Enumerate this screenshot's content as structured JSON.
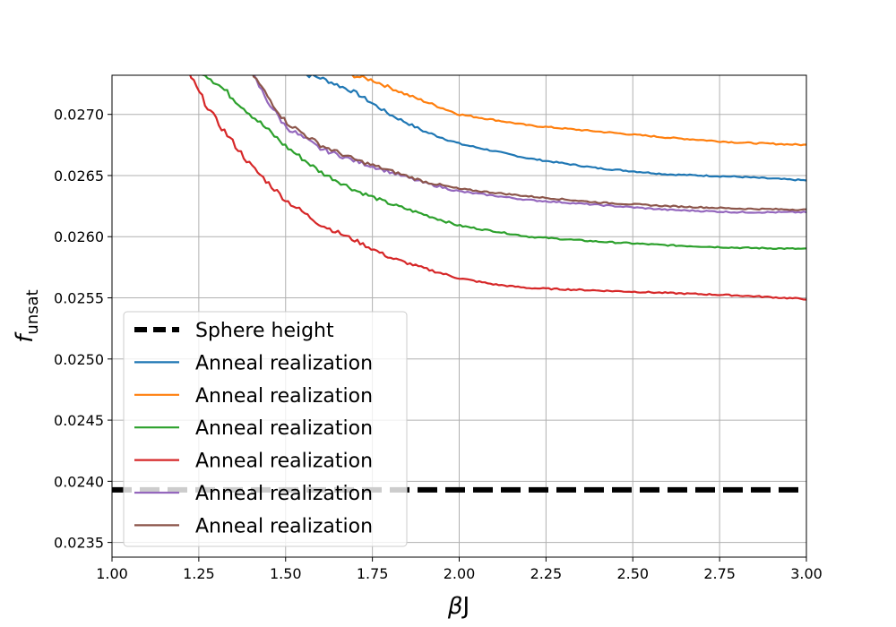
{
  "chart_data": {
    "type": "line",
    "title": "",
    "xlabel_main": "β",
    "xlabel_tail": "J",
    "ylabel_main": "f",
    "ylabel_sub": "unsat",
    "xlim": [
      1.0,
      3.0
    ],
    "ylim": [
      0.02338,
      0.02732
    ],
    "x_ticks": [
      "1.00",
      "1.25",
      "1.50",
      "1.75",
      "2.00",
      "2.25",
      "2.50",
      "2.75",
      "3.00"
    ],
    "y_ticks": [
      "0.0235",
      "0.0240",
      "0.0245",
      "0.0250",
      "0.0255",
      "0.0260",
      "0.0265",
      "0.0270"
    ],
    "grid": true,
    "legend_position": "lower-left",
    "reference_line": {
      "name": "Sphere height",
      "y": 0.02393,
      "color": "#000000",
      "style": "dashed"
    },
    "series": [
      {
        "name": "Anneal realization",
        "color": "#1f77b4",
        "points": [
          [
            1.52,
            0.02735
          ],
          [
            1.6,
            0.0273
          ],
          [
            1.7,
            0.02718
          ],
          [
            1.8,
            0.027
          ],
          [
            1.9,
            0.02686
          ],
          [
            2.0,
            0.02676
          ],
          [
            2.2,
            0.02664
          ],
          [
            2.4,
            0.02656
          ],
          [
            2.6,
            0.02651
          ],
          [
            2.8,
            0.02649
          ],
          [
            3.0,
            0.02646
          ]
        ]
      },
      {
        "name": "Anneal realization",
        "color": "#ff7f0e",
        "points": [
          [
            1.65,
            0.02735
          ],
          [
            1.75,
            0.02728
          ],
          [
            1.85,
            0.02716
          ],
          [
            2.0,
            0.027
          ],
          [
            2.2,
            0.02691
          ],
          [
            2.4,
            0.02686
          ],
          [
            2.6,
            0.02681
          ],
          [
            2.8,
            0.02677
          ],
          [
            3.0,
            0.02675
          ]
        ]
      },
      {
        "name": "Anneal realization",
        "color": "#2ca02c",
        "points": [
          [
            1.26,
            0.02735
          ],
          [
            1.3,
            0.02726
          ],
          [
            1.4,
            0.027
          ],
          [
            1.5,
            0.02674
          ],
          [
            1.6,
            0.02653
          ],
          [
            1.7,
            0.02638
          ],
          [
            1.8,
            0.02627
          ],
          [
            1.9,
            0.02618
          ],
          [
            2.0,
            0.02609
          ],
          [
            2.2,
            0.026
          ],
          [
            2.4,
            0.02596
          ],
          [
            2.6,
            0.02593
          ],
          [
            2.8,
            0.02591
          ],
          [
            3.0,
            0.0259
          ]
        ]
      },
      {
        "name": "Anneal realization",
        "color": "#d62728",
        "points": [
          [
            1.22,
            0.02735
          ],
          [
            1.25,
            0.02718
          ],
          [
            1.3,
            0.02695
          ],
          [
            1.4,
            0.02658
          ],
          [
            1.5,
            0.0263
          ],
          [
            1.6,
            0.0261
          ],
          [
            1.7,
            0.02597
          ],
          [
            1.8,
            0.02583
          ],
          [
            1.9,
            0.02574
          ],
          [
            2.0,
            0.02566
          ],
          [
            2.1,
            0.02561
          ],
          [
            2.2,
            0.02558
          ],
          [
            2.4,
            0.02556
          ],
          [
            2.6,
            0.02554
          ],
          [
            2.8,
            0.02552
          ],
          [
            3.0,
            0.02549
          ]
        ]
      },
      {
        "name": "Anneal realization",
        "color": "#9467bd",
        "points": [
          [
            1.4,
            0.02735
          ],
          [
            1.45,
            0.0271
          ],
          [
            1.5,
            0.0269
          ],
          [
            1.6,
            0.02672
          ],
          [
            1.7,
            0.02662
          ],
          [
            1.8,
            0.02653
          ],
          [
            1.9,
            0.02644
          ],
          [
            2.0,
            0.02637
          ],
          [
            2.2,
            0.0263
          ],
          [
            2.4,
            0.02626
          ],
          [
            2.6,
            0.02622
          ],
          [
            2.8,
            0.0262
          ],
          [
            3.0,
            0.0262
          ]
        ]
      },
      {
        "name": "Anneal realization",
        "color": "#8c564b",
        "points": [
          [
            1.4,
            0.02735
          ],
          [
            1.45,
            0.02714
          ],
          [
            1.5,
            0.02694
          ],
          [
            1.6,
            0.02675
          ],
          [
            1.7,
            0.02663
          ],
          [
            1.8,
            0.02654
          ],
          [
            1.9,
            0.02645
          ],
          [
            2.0,
            0.02639
          ],
          [
            2.2,
            0.02633
          ],
          [
            2.4,
            0.02628
          ],
          [
            2.6,
            0.02625
          ],
          [
            2.8,
            0.02623
          ],
          [
            3.0,
            0.02622
          ]
        ]
      }
    ]
  }
}
